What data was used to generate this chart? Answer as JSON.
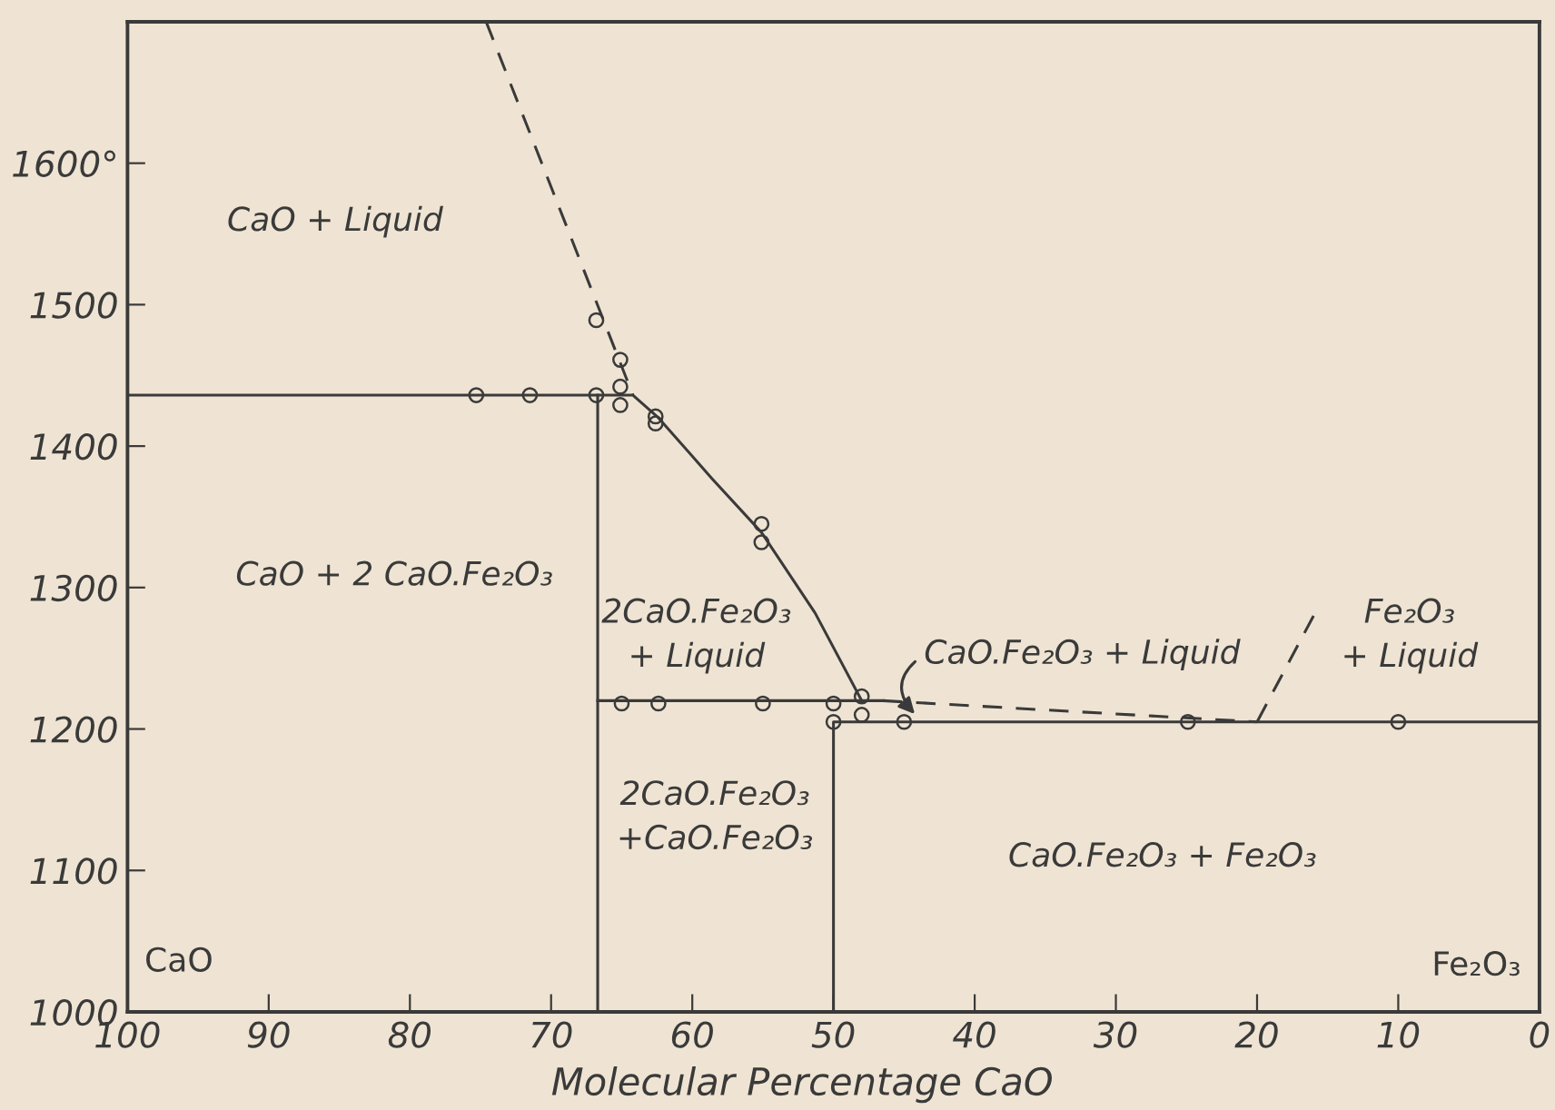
{
  "chart_data": {
    "type": "line",
    "xlabel": "Molecular Percentage CaO",
    "xlim": [
      100,
      0
    ],
    "xticks": [
      100,
      90,
      80,
      70,
      60,
      50,
      40,
      30,
      20,
      10,
      0
    ],
    "ylim": [
      1000,
      1700
    ],
    "yticks": [
      1000,
      1100,
      1200,
      1300,
      1400,
      1500,
      {
        "value": 1600,
        "label": "1600°"
      }
    ],
    "grid": false,
    "legend": false,
    "series": [
      {
        "line_style": "dashed",
        "marker": "none",
        "color": "#3a3a3a",
        "x": [
          74.6,
          64.2
        ],
        "values": [
          1700,
          1436
        ]
      },
      {
        "line_style": "solid",
        "marker": "none",
        "color": "#3a3a3a",
        "x": [
          100,
          64.2,
          62.4,
          58.6,
          55.1,
          51.3,
          48.0
        ],
        "values": [
          1436,
          1436,
          1420,
          1377,
          1339,
          1282,
          1220
        ]
      },
      {
        "line_style": "solid",
        "marker": "none",
        "color": "#3a3a3a",
        "x": [
          66.7,
          66.7
        ],
        "values": [
          1000,
          1436
        ]
      },
      {
        "line_style": "solid",
        "marker": "none",
        "color": "#3a3a3a",
        "x": [
          66.7,
          46.5
        ],
        "values": [
          1220,
          1220
        ]
      },
      {
        "line_style": "solid",
        "marker": "none",
        "color": "#3a3a3a",
        "x": [
          50,
          50,
          0
        ],
        "values": [
          1000,
          1205,
          1205
        ]
      },
      {
        "line_style": "dashed",
        "marker": "none",
        "color": "#3a3a3a",
        "x": [
          46.5,
          20
        ],
        "values": [
          1220,
          1205
        ]
      },
      {
        "line_style": "dashed",
        "marker": "none",
        "color": "#3a3a3a",
        "x": [
          16,
          20
        ],
        "values": [
          1280,
          1205
        ]
      },
      {
        "type": "scatter",
        "marker": "circle",
        "color": "#3a3a3a",
        "x": [
          75.3,
          71.5,
          66.8,
          66.8,
          65.1,
          65.1,
          65.1,
          62.6,
          62.6,
          55.1,
          55.1,
          65.0,
          62.4,
          55.0,
          50.0,
          50.0,
          48.0,
          48.0,
          45.0,
          24.9,
          10.0
        ],
        "values": [
          1436,
          1436,
          1436,
          1489,
          1461,
          1442,
          1429,
          1421,
          1416,
          1345,
          1332,
          1218,
          1218,
          1218,
          1218,
          1205,
          1223,
          1210,
          1205,
          1205,
          1205
        ]
      }
    ],
    "annotations": [
      "CaO + Liquid",
      "CaO + 2 CaO.Fe₂O₃",
      "2CaO.Fe₂O₃\n+ Liquid",
      "2CaO.Fe₂O₃\n+CaO.Fe₂O₃",
      "Fe₂O₃\n+ Liquid",
      "CaO.Fe₂O₃ + Fe₂O₃",
      "CaO",
      "Fe₂O₃",
      {
        "text": "CaO.Fe₂O₃ + Liquid",
        "x": 44,
        "y": 1208
      }
    ]
  }
}
